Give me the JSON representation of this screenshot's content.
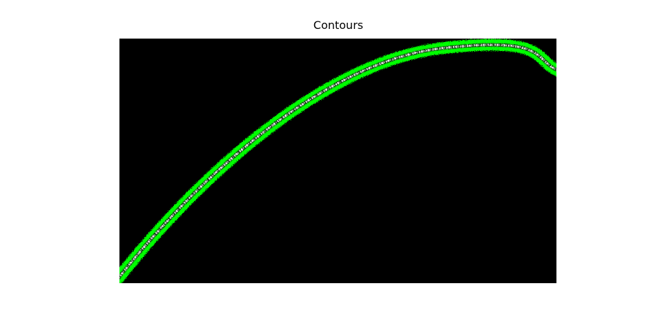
{
  "title": "Contours"
}
